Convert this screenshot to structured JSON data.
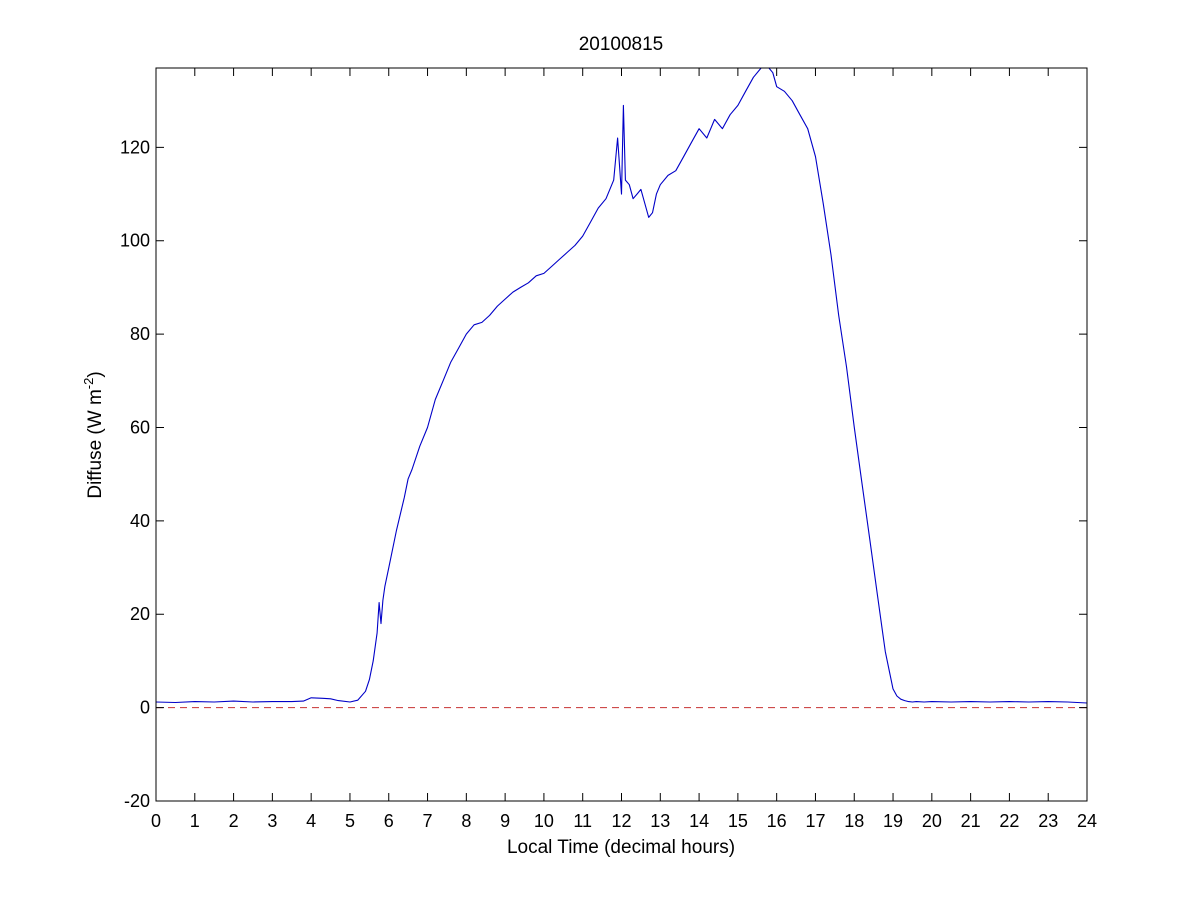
{
  "chart_data": {
    "type": "line",
    "title": "20100815",
    "xlabel": "Local Time (decimal hours)",
    "ylabel": {
      "prefix": "Diffuse (W m",
      "superscript": "-2",
      "suffix": ")"
    },
    "xlim": [
      0,
      24
    ],
    "ylim": [
      -20,
      137
    ],
    "xticks": [
      0,
      1,
      2,
      3,
      4,
      5,
      6,
      7,
      8,
      9,
      10,
      11,
      12,
      13,
      14,
      15,
      16,
      17,
      18,
      19,
      20,
      21,
      22,
      23,
      24
    ],
    "yticks": [
      -20,
      0,
      20,
      40,
      60,
      80,
      100,
      120
    ],
    "grid": false,
    "colors": {
      "series": "#0000c8",
      "reference": "#c83232"
    },
    "reference_line": {
      "y": 0,
      "style": "dashed"
    },
    "series": [
      {
        "x": [
          0,
          0.5,
          1,
          1.5,
          2,
          2.5,
          3,
          3.5,
          3.8,
          4.0,
          4.3,
          4.5,
          4.7,
          5.0,
          5.2,
          5.4,
          5.5,
          5.6,
          5.7,
          5.75,
          5.8,
          5.85,
          5.9,
          6.0,
          6.2,
          6.4,
          6.5,
          6.6,
          6.8,
          7.0,
          7.2,
          7.4,
          7.6,
          7.8,
          8.0,
          8.2,
          8.4,
          8.6,
          8.8,
          9.0,
          9.2,
          9.4,
          9.6,
          9.8,
          10.0,
          10.2,
          10.4,
          10.6,
          10.8,
          11.0,
          11.2,
          11.4,
          11.6,
          11.8,
          11.9,
          12.0,
          12.05,
          12.1,
          12.2,
          12.3,
          12.4,
          12.5,
          12.6,
          12.7,
          12.8,
          12.9,
          13.0,
          13.2,
          13.4,
          13.6,
          13.8,
          14.0,
          14.2,
          14.4,
          14.6,
          14.8,
          15.0,
          15.2,
          15.4,
          15.6,
          15.8,
          15.9,
          16.0,
          16.2,
          16.4,
          16.6,
          16.8,
          17.0,
          17.2,
          17.4,
          17.6,
          17.8,
          18.0,
          18.2,
          18.4,
          18.6,
          18.8,
          19.0,
          19.1,
          19.2,
          19.3,
          19.4,
          19.5,
          19.6,
          19.8,
          20.0,
          20.5,
          21,
          21.5,
          22,
          22.5,
          23,
          23.5,
          24
        ],
        "y": [
          1.2,
          1.1,
          1.3,
          1.2,
          1.4,
          1.2,
          1.3,
          1.3,
          1.4,
          2.1,
          2.0,
          1.9,
          1.5,
          1.2,
          1.6,
          3.5,
          6.0,
          10.0,
          16.0,
          22.5,
          18.0,
          23.0,
          26.0,
          30.0,
          38.0,
          45.0,
          49.0,
          51.0,
          56.0,
          60.0,
          66.0,
          70.0,
          74.0,
          77.0,
          80.0,
          82.0,
          82.5,
          84.0,
          86.0,
          87.5,
          89.0,
          90.0,
          91.0,
          92.5,
          93.0,
          94.5,
          96.0,
          97.5,
          99.0,
          101.0,
          104.0,
          107.0,
          109.0,
          113.0,
          122.0,
          110.0,
          129.0,
          113.0,
          112.0,
          109.0,
          110.0,
          111.0,
          108.0,
          105.0,
          106.0,
          110.0,
          112.0,
          114.0,
          115.0,
          118.0,
          121.0,
          124.0,
          122.0,
          126.0,
          124.0,
          127.0,
          129.0,
          132.0,
          135.0,
          137.0,
          137.0,
          136.0,
          133.0,
          132.0,
          130.0,
          127.0,
          124.0,
          118.0,
          108.0,
          97.0,
          84.0,
          73.0,
          60.0,
          48.0,
          36.0,
          24.0,
          12.0,
          4.0,
          2.5,
          1.8,
          1.5,
          1.3,
          1.2,
          1.3,
          1.2,
          1.3,
          1.2,
          1.3,
          1.2,
          1.3,
          1.2,
          1.3,
          1.2,
          1.0
        ]
      }
    ]
  }
}
